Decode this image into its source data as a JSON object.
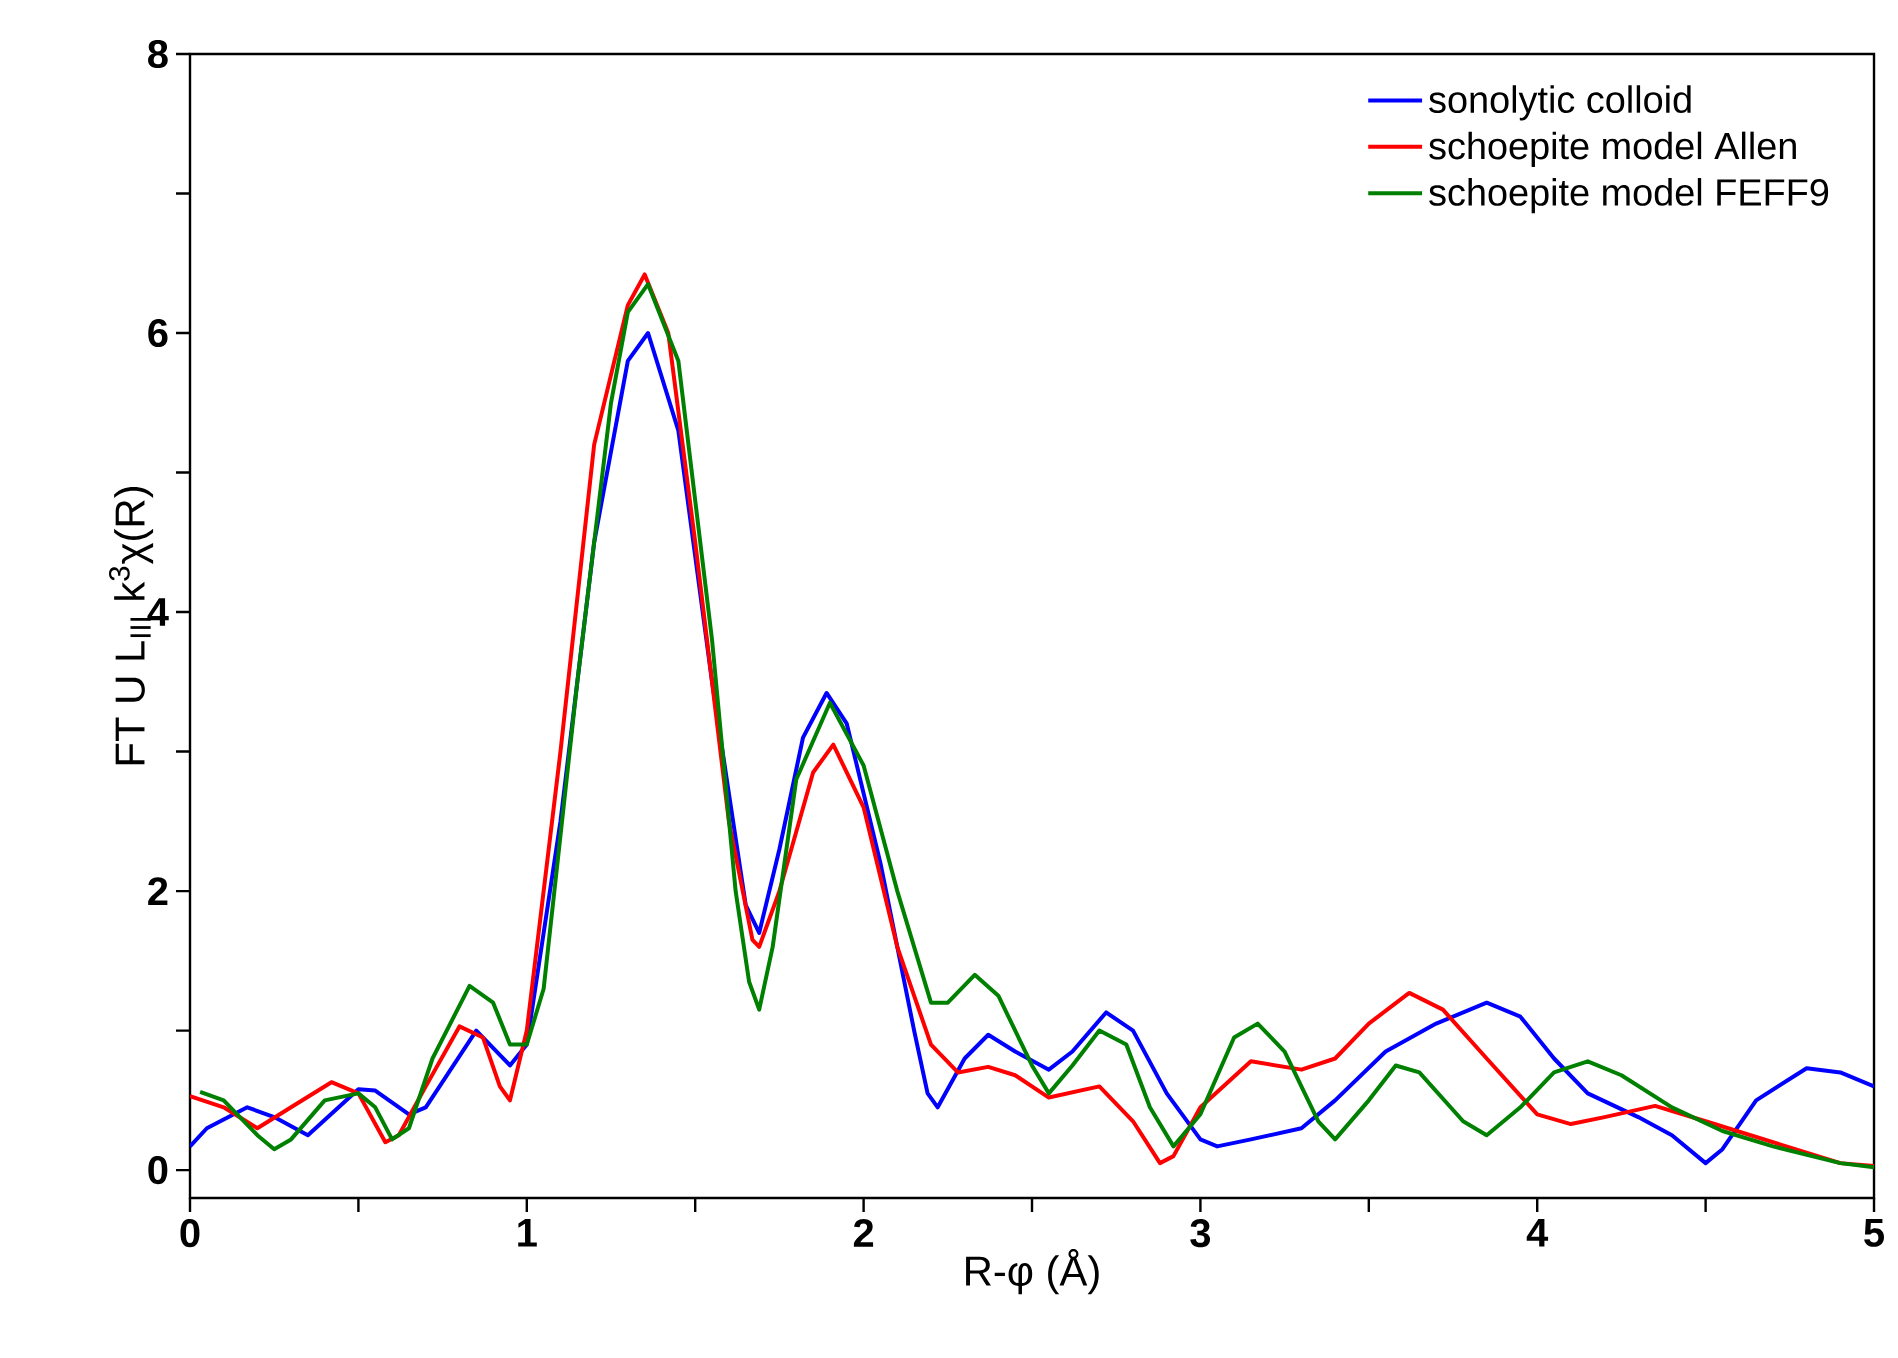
{
  "chart_data": {
    "type": "line",
    "xlabel": "R-φ (Å)",
    "ylabel": "FT U L$_{III}$ k$^{3}$χ(R)",
    "xlim": [
      0,
      5
    ],
    "ylim": [
      -0.2,
      8
    ],
    "xticks": [
      0,
      {
        "value": 0.5,
        "label": null
      },
      1,
      {
        "value": 1.5,
        "label": null
      },
      2,
      {
        "value": 2.5,
        "label": null
      },
      3,
      {
        "value": 3.5,
        "label": null
      },
      4,
      {
        "value": 4.5,
        "label": null
      },
      5
    ],
    "yticks": [
      0,
      {
        "value": 1,
        "label": null
      },
      2,
      {
        "value": 3,
        "label": null
      },
      4,
      {
        "value": 5,
        "label": null
      },
      6,
      {
        "value": 7,
        "label": null
      },
      8
    ],
    "grid": false,
    "legend": "top right",
    "marker": "none",
    "line_style": "solid",
    "series": [
      {
        "name": "sonolytic colloid",
        "color": "#0000ff",
        "x": [
          0,
          0.05,
          0.17,
          0.25,
          0.35,
          0.5,
          0.55,
          0.65,
          0.7,
          0.85,
          0.95,
          1.0,
          1.1,
          1.2,
          1.3,
          1.36,
          1.45,
          1.55,
          1.65,
          1.69,
          1.75,
          1.82,
          1.89,
          1.95,
          2.05,
          2.15,
          2.19,
          2.22,
          2.3,
          2.37,
          2.45,
          2.55,
          2.62,
          2.72,
          2.8,
          2.9,
          3.0,
          3.05,
          3.15,
          3.3,
          3.4,
          3.55,
          3.7,
          3.85,
          3.95,
          4.05,
          4.15,
          4.3,
          4.4,
          4.5,
          4.55,
          4.65,
          4.8,
          4.9,
          5.0
        ],
        "values": [
          0.17,
          0.3,
          0.45,
          0.38,
          0.25,
          0.58,
          0.57,
          0.4,
          0.45,
          1.0,
          0.75,
          0.9,
          2.5,
          4.5,
          5.8,
          6.0,
          5.3,
          3.5,
          1.9,
          1.7,
          2.3,
          3.1,
          3.42,
          3.2,
          2.2,
          1.0,
          0.55,
          0.45,
          0.8,
          0.97,
          0.85,
          0.72,
          0.85,
          1.13,
          1.0,
          0.55,
          0.22,
          0.17,
          0.22,
          0.3,
          0.5,
          0.85,
          1.05,
          1.2,
          1.1,
          0.8,
          0.55,
          0.38,
          0.25,
          0.05,
          0.15,
          0.5,
          0.73,
          0.7,
          0.6
        ]
      },
      {
        "name": "schoepite model Allen",
        "color": "#ff0000",
        "x": [
          0,
          0.1,
          0.2,
          0.3,
          0.42,
          0.5,
          0.58,
          0.62,
          0.7,
          0.8,
          0.87,
          0.92,
          0.95,
          1.0,
          1.1,
          1.2,
          1.3,
          1.35,
          1.42,
          1.5,
          1.6,
          1.67,
          1.69,
          1.75,
          1.85,
          1.91,
          2.0,
          2.1,
          2.2,
          2.28,
          2.37,
          2.45,
          2.55,
          2.7,
          2.8,
          2.88,
          2.92,
          3.0,
          3.15,
          3.3,
          3.4,
          3.5,
          3.62,
          3.72,
          3.85,
          4.0,
          4.1,
          4.2,
          4.35,
          4.5,
          4.7,
          4.9,
          5.0
        ],
        "values": [
          0.53,
          0.45,
          0.3,
          0.45,
          0.63,
          0.55,
          0.2,
          0.25,
          0.6,
          1.03,
          0.95,
          0.6,
          0.5,
          1.0,
          3.0,
          5.2,
          6.2,
          6.42,
          6.0,
          4.5,
          2.5,
          1.65,
          1.6,
          2.0,
          2.85,
          3.05,
          2.6,
          1.6,
          0.9,
          0.7,
          0.74,
          0.68,
          0.52,
          0.6,
          0.35,
          0.05,
          0.1,
          0.45,
          0.78,
          0.72,
          0.8,
          1.05,
          1.27,
          1.15,
          0.8,
          0.4,
          0.33,
          0.38,
          0.46,
          0.35,
          0.2,
          0.05,
          0.03
        ]
      },
      {
        "name": "schoepite model FEFF9",
        "color": "#008000",
        "x": [
          0.03,
          0.1,
          0.2,
          0.25,
          0.3,
          0.4,
          0.5,
          0.55,
          0.6,
          0.65,
          0.72,
          0.83,
          0.9,
          0.95,
          1.0,
          1.05,
          1.15,
          1.25,
          1.3,
          1.36,
          1.45,
          1.55,
          1.62,
          1.66,
          1.69,
          1.73,
          1.8,
          1.9,
          2.0,
          2.1,
          2.2,
          2.25,
          2.33,
          2.4,
          2.5,
          2.55,
          2.62,
          2.7,
          2.78,
          2.85,
          2.92,
          3.0,
          3.1,
          3.17,
          3.25,
          3.35,
          3.4,
          3.5,
          3.58,
          3.65,
          3.78,
          3.85,
          3.95,
          4.05,
          4.15,
          4.25,
          4.4,
          4.55,
          4.7,
          4.9,
          5.0
        ],
        "values": [
          0.56,
          0.5,
          0.25,
          0.15,
          0.22,
          0.5,
          0.55,
          0.45,
          0.22,
          0.3,
          0.8,
          1.32,
          1.2,
          0.9,
          0.9,
          1.3,
          3.5,
          5.5,
          6.15,
          6.35,
          5.8,
          3.8,
          2.0,
          1.35,
          1.15,
          1.6,
          2.8,
          3.35,
          2.9,
          2.0,
          1.2,
          1.2,
          1.4,
          1.25,
          0.75,
          0.55,
          0.75,
          1.0,
          0.9,
          0.45,
          0.17,
          0.4,
          0.95,
          1.05,
          0.85,
          0.35,
          0.22,
          0.5,
          0.75,
          0.7,
          0.35,
          0.25,
          0.45,
          0.7,
          0.78,
          0.68,
          0.45,
          0.28,
          0.17,
          0.05,
          0.02
        ]
      }
    ]
  }
}
